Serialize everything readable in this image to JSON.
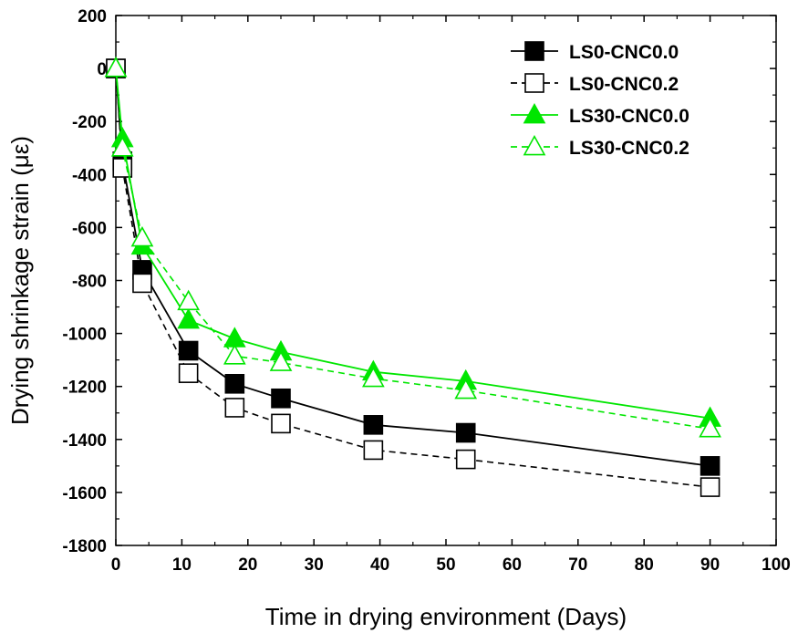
{
  "chart_data": {
    "type": "line",
    "xlabel": "Time in drying environment (Days)",
    "ylabel": "Drying shrinkage strain (με)",
    "xlim": [
      0,
      100
    ],
    "ylim": [
      -1800,
      200
    ],
    "x_ticks": [
      "0",
      "10",
      "20",
      "30",
      "40",
      "50",
      "60",
      "70",
      "80",
      "90",
      "100"
    ],
    "y_ticks": [
      "200",
      "0",
      "-200",
      "-400",
      "-600",
      "-800",
      "-1000",
      "-1200",
      "-1400",
      "-1600",
      "-1800"
    ],
    "legend_position": "top-right",
    "grid": false,
    "series": [
      {
        "name": "LS0-CNC0.0",
        "color": "#000000",
        "marker": "square",
        "filled": true,
        "line": "solid",
        "x": [
          0,
          1,
          4,
          11,
          18,
          25,
          39,
          53,
          90
        ],
        "y": [
          0,
          -350,
          -760,
          -1065,
          -1190,
          -1245,
          -1345,
          -1375,
          -1500
        ]
      },
      {
        "name": "LS0-CNC0.2",
        "color": "#000000",
        "marker": "square",
        "filled": false,
        "line": "dashed",
        "x": [
          0,
          1,
          4,
          11,
          18,
          25,
          39,
          53,
          90
        ],
        "y": [
          0,
          -375,
          -810,
          -1150,
          -1280,
          -1340,
          -1440,
          -1475,
          -1580
        ]
      },
      {
        "name": "LS30-CNC0.0",
        "color": "#00e600",
        "marker": "triangle",
        "filled": true,
        "line": "solid",
        "x": [
          0,
          1,
          4,
          11,
          18,
          25,
          39,
          53,
          90
        ],
        "y": [
          0,
          -265,
          -670,
          -950,
          -1020,
          -1070,
          -1145,
          -1180,
          -1320
        ]
      },
      {
        "name": "LS30-CNC0.2",
        "color": "#00e600",
        "marker": "triangle",
        "filled": false,
        "line": "dashed",
        "x": [
          0,
          1,
          4,
          11,
          18,
          25,
          39,
          53,
          90
        ],
        "y": [
          0,
          -300,
          -640,
          -880,
          -1085,
          -1110,
          -1170,
          -1215,
          -1360
        ]
      }
    ]
  }
}
